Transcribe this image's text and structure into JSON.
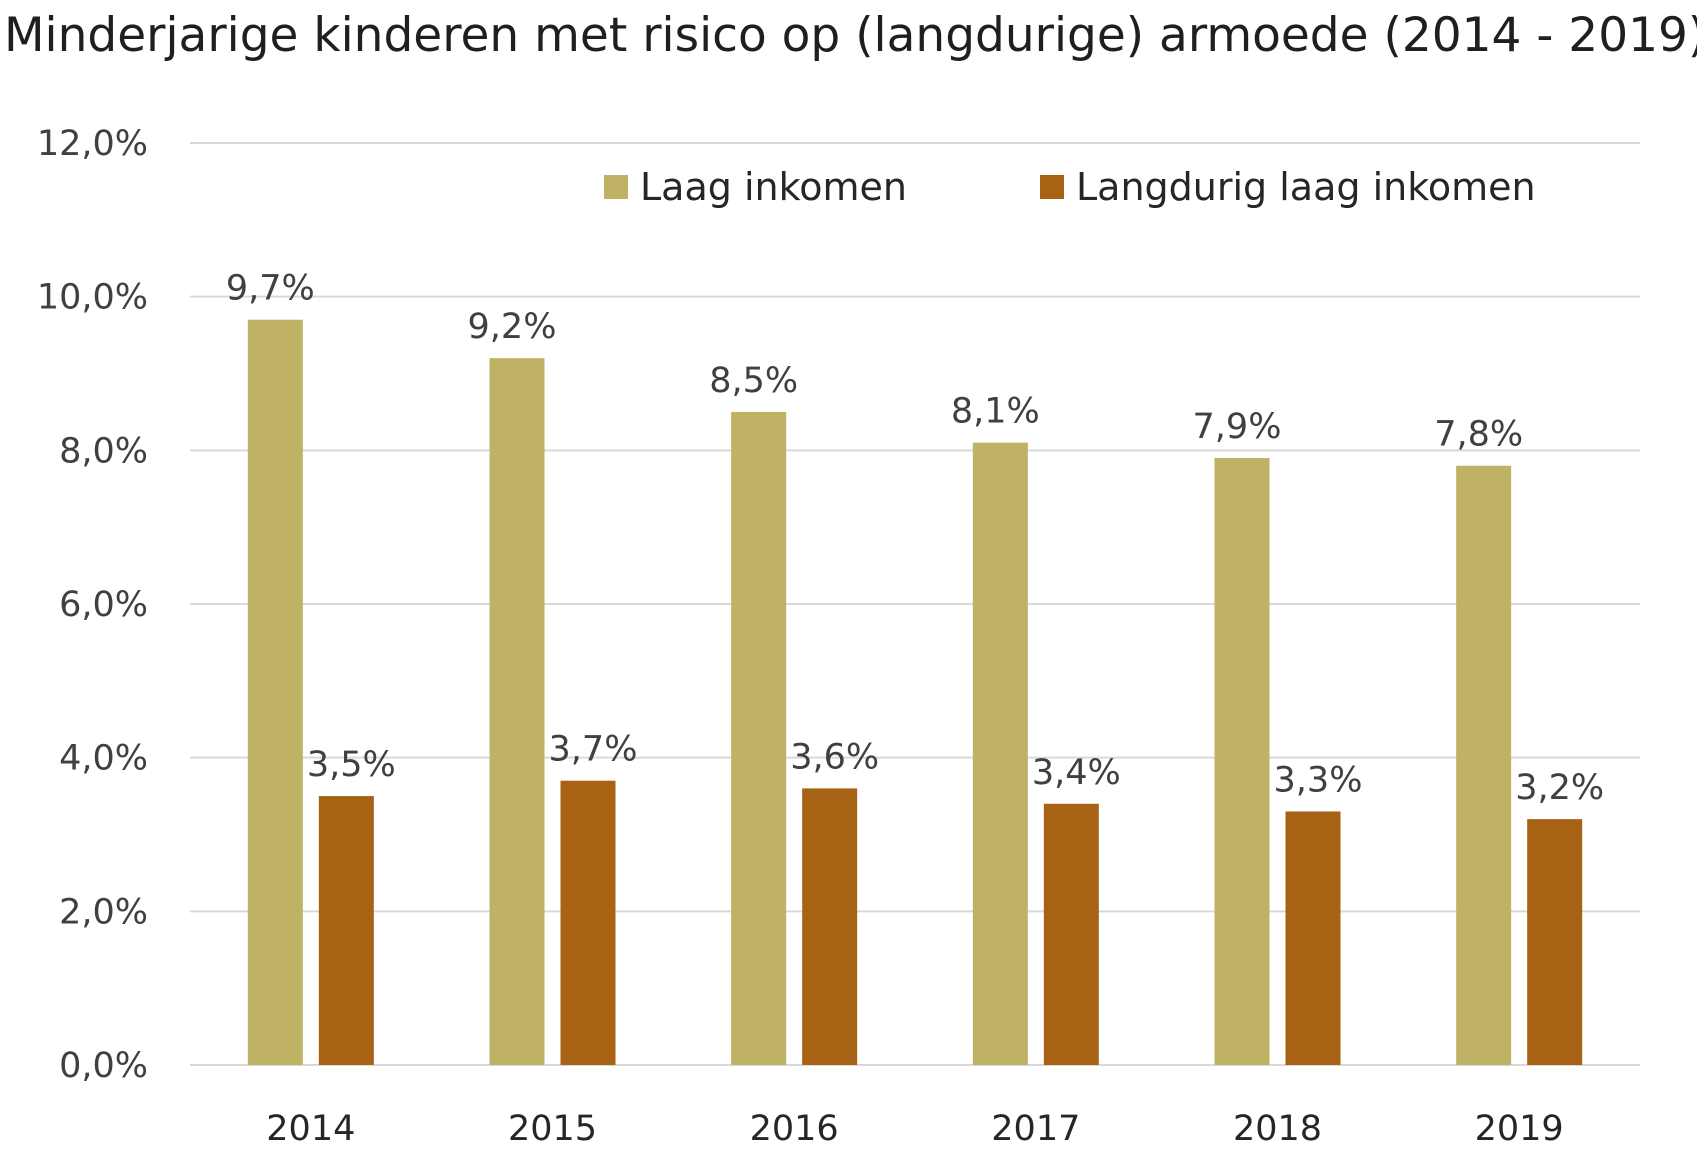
{
  "chart_data": {
    "type": "bar",
    "title": "Minderjarige kinderen met risico op (langdurige) armoede (2014 - 2019)",
    "xlabel": "",
    "ylabel": "",
    "categories": [
      "2014",
      "2015",
      "2016",
      "2017",
      "2018",
      "2019"
    ],
    "series": [
      {
        "name": "Laag inkomen",
        "color": "#BFB264",
        "values": [
          9.7,
          9.2,
          8.5,
          8.1,
          7.9,
          7.8
        ],
        "labels": [
          "9,7%",
          "9,2%",
          "8,5%",
          "8,1%",
          "7,9%",
          "7,8%"
        ]
      },
      {
        "name": "Langdurig laag inkomen",
        "color": "#A86214",
        "values": [
          3.5,
          3.7,
          3.6,
          3.4,
          3.3,
          3.2
        ],
        "labels": [
          "3,5%",
          "3,7%",
          "3,6%",
          "3,4%",
          "3,3%",
          "3,2%"
        ]
      }
    ],
    "ylim": [
      0,
      12
    ],
    "yticks": [
      0,
      2,
      4,
      6,
      8,
      10,
      12
    ],
    "ytick_labels": [
      "0,0%",
      "2,0%",
      "4,0%",
      "6,0%",
      "8,0%",
      "10,0%",
      "12,0%"
    ],
    "grid": true,
    "gridline_color": "#D9D9D9",
    "legend_position": "top-right"
  }
}
